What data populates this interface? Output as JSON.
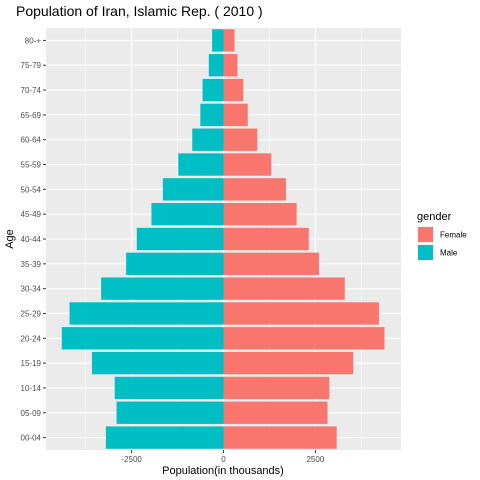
{
  "chart_data": {
    "type": "bar",
    "orientation": "horizontal",
    "title": "Population of Iran, Islamic Rep. ( 2010 )",
    "xlabel": "Population(in thousands)",
    "ylabel": "Age",
    "categories": [
      "00-04",
      "05-09",
      "10-14",
      "15-19",
      "20-24",
      "25-29",
      "30-34",
      "35-39",
      "40-44",
      "45-49",
      "50-54",
      "55-59",
      "60-64",
      "65-69",
      "70-74",
      "75-79",
      "80-+"
    ],
    "series": [
      {
        "name": "Female",
        "color": "#F8766D",
        "values": [
          3080,
          2830,
          2880,
          3530,
          4380,
          4230,
          3300,
          2600,
          2320,
          1990,
          1700,
          1300,
          920,
          660,
          540,
          380,
          300
        ]
      },
      {
        "name": "Male",
        "color": "#00BFC4",
        "values": [
          -3200,
          -2910,
          -2960,
          -3580,
          -4400,
          -4190,
          -3330,
          -2650,
          -2360,
          -1960,
          -1650,
          -1230,
          -850,
          -630,
          -570,
          -400,
          -310
        ]
      }
    ],
    "xlim": [
      -4830,
      4830
    ],
    "xticks": [
      -2500,
      0,
      2500
    ],
    "xtick_labels": [
      "-2500",
      "0",
      "2500"
    ],
    "grid": true,
    "legend": {
      "title": "gender",
      "position": "right",
      "entries": [
        "Female",
        "Male"
      ]
    }
  }
}
